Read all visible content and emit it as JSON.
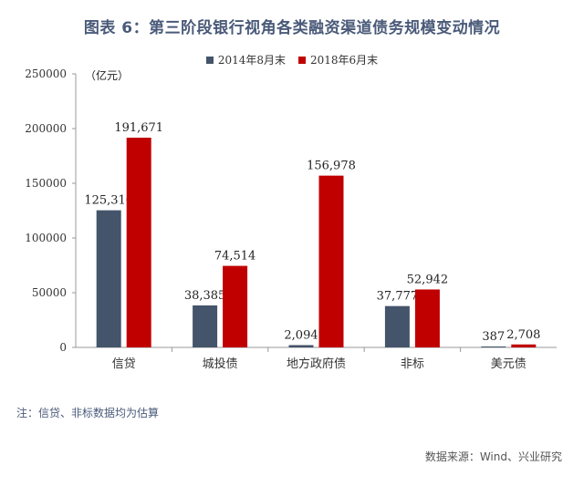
{
  "title": "图表 6：第三阶段银行视角各类融资渠道债务规模变动情况",
  "unit_label": "（亿元）",
  "note": "注：信贷、非标数据均为估算",
  "source": "数据来源：Wind、兴业研究",
  "colors": {
    "series1": "#44546a",
    "series2": "#c00000",
    "title": "#4a5a79"
  },
  "chart_data": {
    "type": "bar",
    "title": "图表 6：第三阶段银行视角各类融资渠道债务规模变动情况",
    "xlabel": "",
    "ylabel": "（亿元）",
    "categories": [
      "信贷",
      "城投债",
      "地方政府债",
      "非标",
      "美元债"
    ],
    "series": [
      {
        "name": "2014年8月末",
        "values": [
          125316,
          38385,
          2094,
          37777,
          387
        ],
        "labels": [
          "125,316",
          "38,385",
          "2,094",
          "37,777",
          "387"
        ]
      },
      {
        "name": "2018年6月末",
        "values": [
          191671,
          74514,
          156978,
          52942,
          2708
        ],
        "labels": [
          "191,671",
          "74,514",
          "156,978",
          "52,942",
          "2,708"
        ]
      }
    ],
    "ylim": [
      0,
      250000
    ],
    "yticks": [
      "0",
      "50000",
      "100000",
      "150000",
      "200000",
      "250000"
    ],
    "grid": false,
    "legend_position": "top"
  }
}
